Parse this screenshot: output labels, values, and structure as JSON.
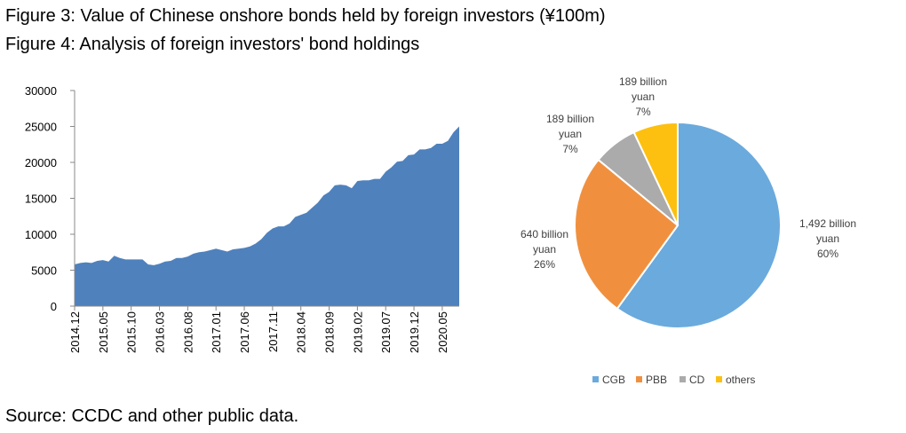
{
  "header": {
    "title1": "Figure 3: Value of Chinese onshore bonds held by foreign investors (¥100m)",
    "title2": "Figure 4: Analysis of foreign investors' bond holdings"
  },
  "footer": {
    "source": "Source: CCDC and other public data."
  },
  "chart_data": [
    {
      "type": "area",
      "title": "Value of Chinese onshore bonds held by foreign investors (¥100m)",
      "xlabel": "",
      "ylabel": "",
      "ylim": [
        0,
        30000
      ],
      "yticks": [
        "0",
        "5000",
        "10000",
        "15000",
        "20000",
        "25000",
        "30000"
      ],
      "xtick_labels": [
        "2014.12",
        "2015.05",
        "2015.10",
        "2016.03",
        "2016.08",
        "2017.01",
        "2017.06",
        "2017.11",
        "2018.04",
        "2018.09",
        "2019.02",
        "2019.07",
        "2019.12",
        "2020.05"
      ],
      "x_start": "2014.12",
      "x_end": "2020.06",
      "color": "#4F81BD",
      "series": [
        {
          "values": [
            5800,
            6000,
            6100,
            6000,
            6300,
            6400,
            6200,
            7000,
            6700,
            6500,
            6500,
            6500,
            6500,
            5800,
            5700,
            5900,
            6200,
            6300,
            6700,
            6700,
            6900,
            7300,
            7500,
            7600,
            7800,
            8000,
            7800,
            7600,
            7900,
            8000,
            8100,
            8300,
            8700,
            9300,
            10200,
            10800,
            11100,
            11100,
            11500,
            12400,
            12700,
            13000,
            13700,
            14400,
            15400,
            15900,
            16800,
            16900,
            16800,
            16400,
            17400,
            17500,
            17500,
            17700,
            17700,
            18700,
            19300,
            20100,
            20200,
            21000,
            21100,
            21800,
            21800,
            22000,
            22600,
            22600,
            23000,
            24200,
            25000
          ]
        }
      ]
    },
    {
      "type": "pie",
      "legend_position": "bottom",
      "slices": [
        {
          "category": "CGB",
          "value": 60,
          "label": [
            "1,492 billion",
            "yuan",
            "60%"
          ],
          "color": "#6BAADD"
        },
        {
          "category": "PBB",
          "value": 26,
          "label": [
            "640 billion",
            "yuan",
            "26%"
          ],
          "color": "#F0903F"
        },
        {
          "category": "CD",
          "value": 7,
          "label": [
            "189 billion",
            "yuan",
            "7%"
          ],
          "color": "#ABABAB"
        },
        {
          "category": "others",
          "value": 7,
          "label": [
            "189 billion",
            "yuan",
            "7%"
          ],
          "color": "#FDC010"
        }
      ]
    }
  ]
}
